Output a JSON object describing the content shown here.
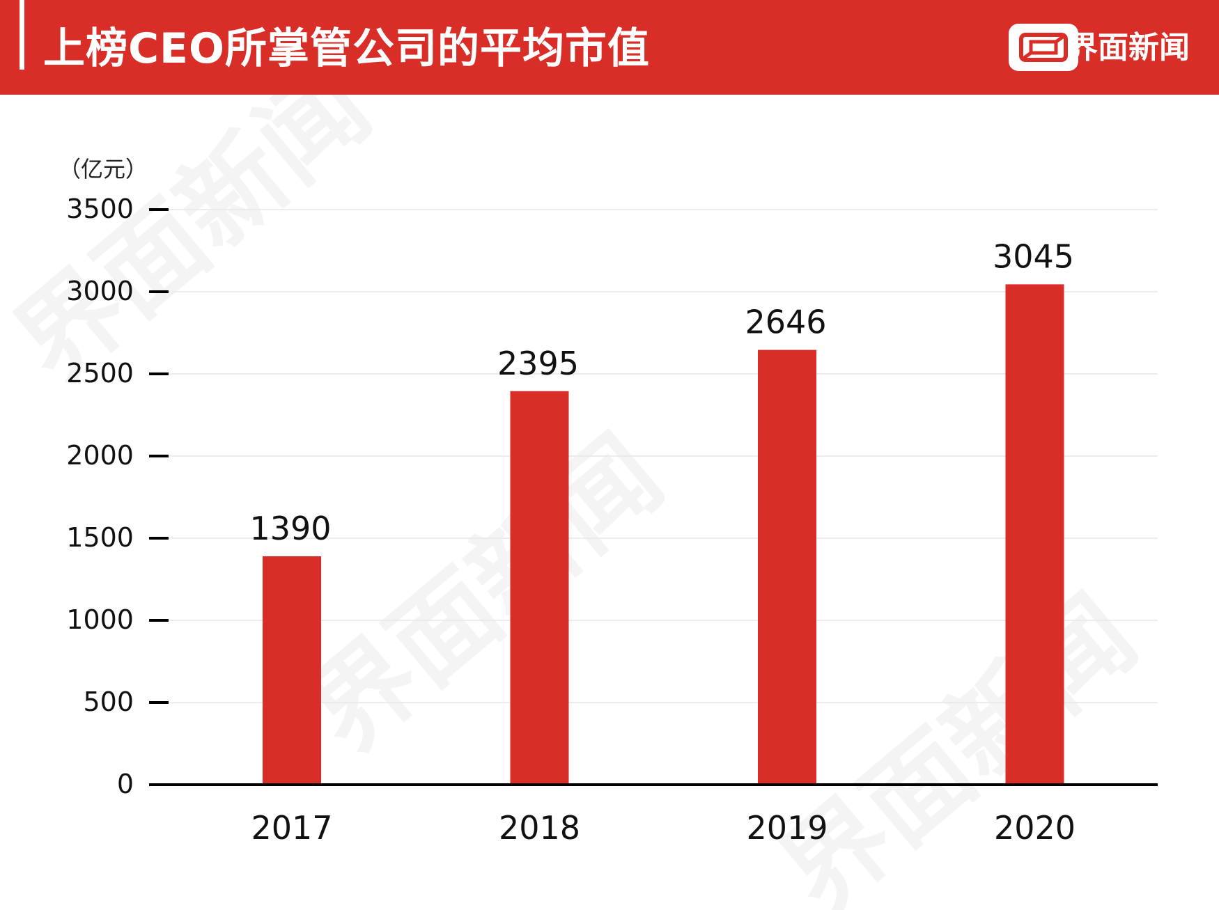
{
  "header": {
    "title": "上榜CEO所掌管公司的平均市值",
    "brand": "界面新闻",
    "background_color": "#d92d27"
  },
  "watermark": {
    "text": "界面新闻"
  },
  "chart_data": {
    "type": "bar",
    "title": "上榜CEO所掌管公司的平均市值",
    "unit_label": "（亿元）",
    "categories": [
      "2017",
      "2018",
      "2019",
      "2020"
    ],
    "values": [
      1390,
      2395,
      2646,
      3045
    ],
    "ylim": [
      0,
      3500
    ],
    "yticks": [
      0,
      500,
      1000,
      1500,
      2000,
      2500,
      3000,
      3500
    ],
    "grid": true,
    "legend": "none",
    "bar_color": "#d92d27",
    "data_labels": [
      "1390",
      "2395",
      "2646",
      "3045"
    ]
  }
}
